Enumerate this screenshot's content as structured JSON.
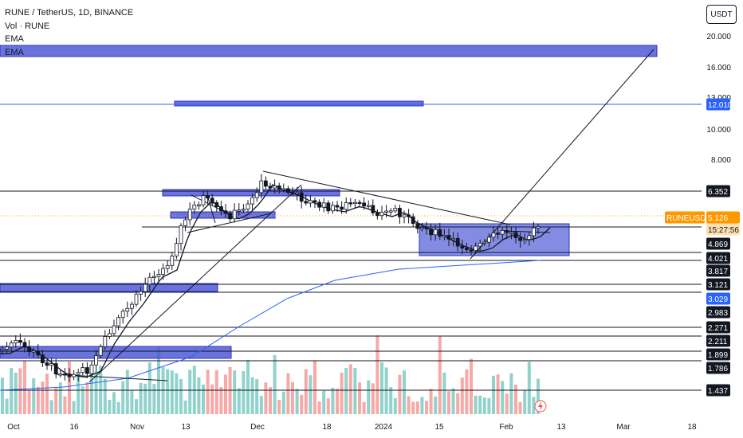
{
  "legend": {
    "symbol": "RUNE / TetherUS, 1D, BINANCE",
    "vol": "Vol · RUNE",
    "ema1": "EMA",
    "ema2": "EMA"
  },
  "currency_button": "USDT",
  "price_axis_ticks": [
    "20.000",
    "16.000",
    "13.000",
    "10.000",
    "8.000"
  ],
  "price_labels": [
    {
      "text": "12.010",
      "style": "blue"
    },
    {
      "text": "6.352",
      "style": "dark"
    },
    {
      "text": "RUNEUSDT",
      "style": "orange"
    },
    {
      "text": "5.126",
      "style": "orange"
    },
    {
      "text": "15:27:56",
      "style": "orange-light"
    },
    {
      "text": "4.869",
      "style": "dark"
    },
    {
      "text": "4.021",
      "style": "dark"
    },
    {
      "text": "3.817",
      "style": "dark"
    },
    {
      "text": "3.121",
      "style": "dark"
    },
    {
      "text": "3.029",
      "style": "blue"
    },
    {
      "text": "2.983",
      "style": "dark"
    },
    {
      "text": "2.271",
      "style": "dark"
    },
    {
      "text": "2.211",
      "style": "dark"
    },
    {
      "text": "1.899",
      "style": "dark"
    },
    {
      "text": "1.786",
      "style": "dark"
    },
    {
      "text": "1.437",
      "style": "dark"
    }
  ],
  "time_axis_ticks": [
    "Oct",
    "16",
    "Nov",
    "13",
    "Dec",
    "18",
    "2024",
    "15",
    "Feb",
    "13",
    "Mar",
    "18"
  ],
  "colors": {
    "up": "#26a69a",
    "down": "#ef5350",
    "zone_fill": "#4f5bd5",
    "accent_blue": "#2962ff",
    "orange": "#ff9800",
    "dark_label": "#131722"
  },
  "icons": [
    "lightning-icon"
  ]
}
